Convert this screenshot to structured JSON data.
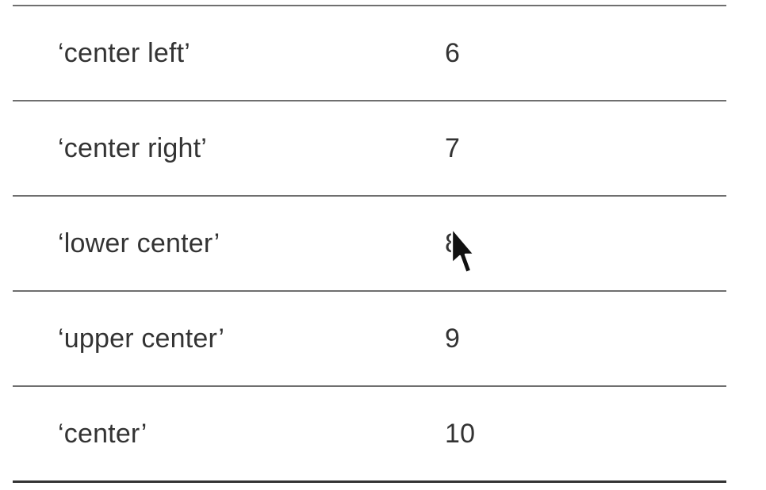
{
  "table": {
    "rows": [
      {
        "name": "‘center left’",
        "value": "6"
      },
      {
        "name": "‘center right’",
        "value": "7"
      },
      {
        "name": "‘lower center’",
        "value": "8"
      },
      {
        "name": "‘upper center’",
        "value": "9"
      },
      {
        "name": "‘center’",
        "value": "10"
      }
    ]
  },
  "cursor": {
    "icon": "mouse-pointer-icon"
  }
}
